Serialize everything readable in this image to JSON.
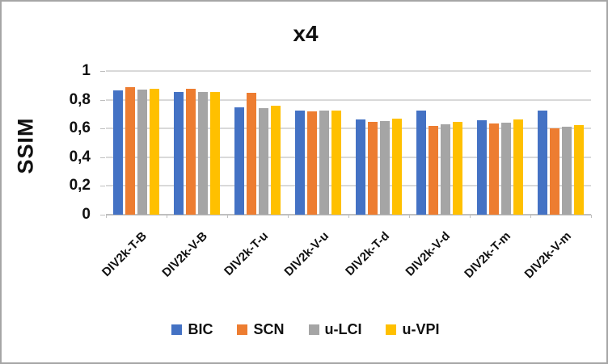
{
  "window": {
    "background": "#ffffff",
    "border_color": "#a6a6a6"
  },
  "chart_data": {
    "type": "bar",
    "title": "x4",
    "xlabel": "",
    "ylabel": "SSIM",
    "categories": [
      "DIV2k-T-B",
      "DIV2k-V-B",
      "DIV2k-T-u",
      "DIV2k-V-u",
      "DIV2k-T-d",
      "DIV2k-V-d",
      "DIV2k-T-m",
      "DIV2k-V-m"
    ],
    "series": [
      {
        "name": "BIC",
        "color": "#4472C4",
        "values": [
          0.868,
          0.853,
          0.748,
          0.726,
          0.661,
          0.724,
          0.656,
          0.723
        ]
      },
      {
        "name": "SCN",
        "color": "#ED7D31",
        "values": [
          0.885,
          0.876,
          0.846,
          0.719,
          0.645,
          0.62,
          0.635,
          0.602
        ]
      },
      {
        "name": "u-LCI",
        "color": "#A5A5A5",
        "values": [
          0.869,
          0.853,
          0.744,
          0.726,
          0.651,
          0.63,
          0.643,
          0.61
        ]
      },
      {
        "name": "u-VPI",
        "color": "#FFC000",
        "values": [
          0.874,
          0.855,
          0.756,
          0.724,
          0.667,
          0.644,
          0.661,
          0.626
        ]
      }
    ],
    "ylim": [
      0,
      1
    ],
    "ytick_step": 0.2,
    "ytick_labels": [
      "0",
      "0,2",
      "0,4",
      "0,6",
      "0,8",
      "1"
    ],
    "decimal_separator": ",",
    "grid": true,
    "gridline_color": "#d9d9d9",
    "axis_line_color": "#bfbfbf",
    "legend_position": "bottom"
  }
}
